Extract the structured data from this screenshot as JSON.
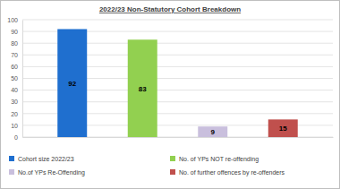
{
  "chart_data": {
    "type": "bar",
    "title": "2022/23 Non-Statutory Cohort Breakdown",
    "categories": [
      null
    ],
    "series": [
      {
        "name": "Cohort size 2022/23",
        "color": "#1f6fcf",
        "values": [
          92
        ]
      },
      {
        "name": "No. of YPs NOT re-offending",
        "color": "#92d050",
        "values": [
          83
        ]
      },
      {
        "name": "No.of YPs Re-Offending",
        "color": "#c9bfdd",
        "values": [
          9
        ]
      },
      {
        "name": "No. of further offences by re-offenders",
        "color": "#c0504d",
        "values": [
          15
        ]
      }
    ],
    "ylim": [
      0,
      100
    ],
    "yticks": [
      0,
      10,
      20,
      30,
      40,
      50,
      60,
      70,
      80,
      90,
      100
    ],
    "grid": true,
    "legend": "bottom",
    "data_labels": true,
    "tick_labels": "y"
  }
}
